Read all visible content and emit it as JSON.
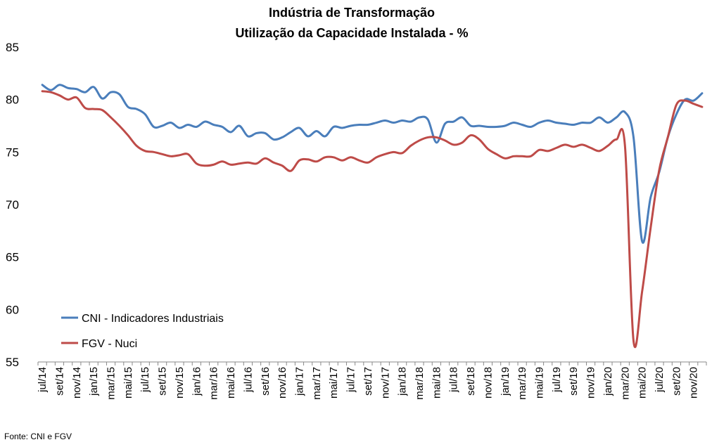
{
  "chart_data": {
    "type": "line",
    "title": "Indústria de Transformação",
    "subtitle": "Utilização da Capacidade Instalada - %",
    "source": "Fonte: CNI e FGV",
    "xlabel": "",
    "ylabel": "",
    "ylim": [
      55,
      85
    ],
    "yticks": [
      "55",
      "60",
      "65",
      "70",
      "75",
      "80",
      "85"
    ],
    "grid": false,
    "legend_position": "bottom-left",
    "x": [
      "jul/14",
      "ago/14",
      "set/14",
      "out/14",
      "nov/14",
      "dez/14",
      "jan/15",
      "fev/15",
      "mar/15",
      "abr/15",
      "mai/15",
      "jun/15",
      "jul/15",
      "ago/15",
      "set/15",
      "out/15",
      "nov/15",
      "dez/15",
      "jan/16",
      "fev/16",
      "mar/16",
      "abr/16",
      "mai/16",
      "jun/16",
      "jul/16",
      "ago/16",
      "set/16",
      "out/16",
      "nov/16",
      "dez/16",
      "jan/17",
      "fev/17",
      "mar/17",
      "abr/17",
      "mai/17",
      "jun/17",
      "jul/17",
      "ago/17",
      "set/17",
      "out/17",
      "nov/17",
      "dez/17",
      "jan/18",
      "fev/18",
      "mar/18",
      "abr/18",
      "mai/18",
      "jun/18",
      "jul/18",
      "ago/18",
      "set/18",
      "out/18",
      "nov/18",
      "dez/18",
      "jan/19",
      "fev/19",
      "mar/19",
      "abr/19",
      "mai/19",
      "jun/19",
      "jul/19",
      "ago/19",
      "set/19",
      "out/19",
      "nov/19",
      "dez/19",
      "jan/20",
      "fev/20",
      "mar/20",
      "abr/20",
      "mai/20",
      "jun/20",
      "jul/20",
      "ago/20",
      "set/20",
      "out/20",
      "nov/20",
      "dez/20"
    ],
    "xtick_labels": [
      "jul/14",
      "set/14",
      "nov/14",
      "jan/15",
      "mar/15",
      "mai/15",
      "jul/15",
      "set/15",
      "nov/15",
      "jan/16",
      "mar/16",
      "mai/16",
      "jul/16",
      "set/16",
      "nov/16",
      "jan/17",
      "mar/17",
      "mai/17",
      "jul/17",
      "set/17",
      "nov/17",
      "jan/18",
      "mar/18",
      "mai/18",
      "jul/18",
      "set/18",
      "nov/18",
      "jan/19",
      "mar/19",
      "mai/19",
      "jul/19",
      "set/19",
      "nov/19",
      "jan/20",
      "mar/20",
      "mai/20",
      "jul/20",
      "set/20",
      "nov/20"
    ],
    "series": [
      {
        "name": "CNI - Indicadores Industriais",
        "color": "#4a7ebb",
        "values": [
          81.4,
          80.9,
          81.4,
          81.1,
          81.0,
          80.7,
          81.2,
          80.1,
          80.7,
          80.5,
          79.3,
          79.1,
          78.6,
          77.4,
          77.5,
          77.8,
          77.3,
          77.6,
          77.4,
          77.9,
          77.6,
          77.4,
          76.9,
          77.5,
          76.5,
          76.8,
          76.8,
          76.2,
          76.4,
          76.9,
          77.3,
          76.5,
          77.0,
          76.5,
          77.4,
          77.3,
          77.5,
          77.6,
          77.6,
          77.8,
          78.0,
          77.8,
          78.0,
          77.9,
          78.3,
          78.1,
          75.9,
          77.7,
          77.9,
          78.3,
          77.5,
          77.5,
          77.4,
          77.4,
          77.5,
          77.8,
          77.6,
          77.4,
          77.8,
          78.0,
          77.8,
          77.7,
          77.6,
          77.8,
          77.8,
          78.3,
          77.8,
          78.3,
          78.8,
          76.4,
          66.5,
          70.7,
          73.1,
          76.4,
          78.6,
          80.0,
          79.9,
          80.6
        ]
      },
      {
        "name": "FGV - Nuci",
        "color": "#be4b48",
        "values": [
          80.8,
          80.7,
          80.4,
          80.0,
          80.2,
          79.2,
          79.1,
          79.0,
          78.3,
          77.5,
          76.6,
          75.6,
          75.1,
          75.0,
          74.8,
          74.6,
          74.7,
          74.8,
          73.9,
          73.7,
          73.8,
          74.1,
          73.8,
          73.9,
          74.0,
          73.9,
          74.4,
          74.0,
          73.7,
          73.2,
          74.2,
          74.3,
          74.1,
          74.5,
          74.5,
          74.2,
          74.5,
          74.2,
          74.0,
          74.5,
          74.8,
          75.0,
          74.9,
          75.6,
          76.1,
          76.4,
          76.4,
          76.1,
          75.7,
          75.9,
          76.6,
          76.2,
          75.3,
          74.8,
          74.4,
          74.6,
          74.6,
          74.6,
          75.2,
          75.1,
          75.4,
          75.7,
          75.5,
          75.7,
          75.4,
          75.1,
          75.6,
          76.2,
          75.6,
          57.0,
          61.7,
          67.8,
          73.3,
          76.4,
          79.5,
          79.9,
          79.6,
          79.3
        ]
      }
    ]
  }
}
